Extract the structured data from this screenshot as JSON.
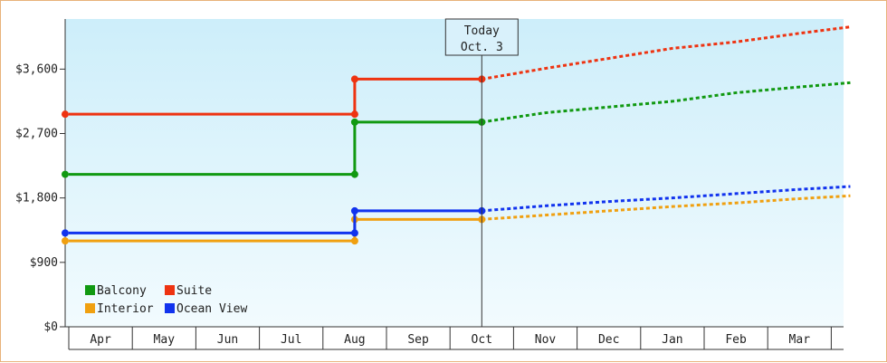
{
  "chart_data": {
    "type": "line",
    "title": "",
    "xlabel": "",
    "ylabel": "",
    "x_categories": [
      "Apr",
      "May",
      "Jun",
      "Jul",
      "Aug",
      "Sep",
      "Oct",
      "Nov",
      "Dec",
      "Jan",
      "Feb",
      "Mar"
    ],
    "y_ticks": [
      "$0",
      "$900",
      "$1,800",
      "$2,700",
      "$3,600"
    ],
    "ylim": [
      0,
      4300
    ],
    "grid": false,
    "legend_placement": "bottom-left",
    "today_marker": {
      "line1": "Today",
      "line2": "Oct. 3",
      "x": 6.0
    },
    "series": [
      {
        "name": "Balcony",
        "color": "#119911",
        "actual": [
          [
            -0.5,
            2130
          ],
          [
            4.0,
            2130
          ],
          [
            4.0,
            2860
          ],
          [
            6.0,
            2860
          ]
        ],
        "projected": [
          [
            6.0,
            2860
          ],
          [
            7.0,
            2990
          ],
          [
            8.0,
            3070
          ],
          [
            9.0,
            3150
          ],
          [
            10.0,
            3270
          ],
          [
            11.0,
            3350
          ],
          [
            11.8,
            3410
          ]
        ]
      },
      {
        "name": "Suite",
        "color": "#ee3311",
        "actual": [
          [
            -0.5,
            2970
          ],
          [
            4.0,
            2970
          ],
          [
            4.0,
            3460
          ],
          [
            6.0,
            3460
          ]
        ],
        "projected": [
          [
            6.0,
            3460
          ],
          [
            7.0,
            3610
          ],
          [
            8.0,
            3750
          ],
          [
            9.0,
            3890
          ],
          [
            10.0,
            3980
          ],
          [
            11.0,
            4100
          ],
          [
            11.8,
            4190
          ]
        ]
      },
      {
        "name": "Interior",
        "color": "#f0a010",
        "actual": [
          [
            -0.5,
            1200
          ],
          [
            4.0,
            1200
          ],
          [
            4.0,
            1500
          ],
          [
            6.0,
            1500
          ]
        ],
        "projected": [
          [
            6.0,
            1500
          ],
          [
            7.0,
            1560
          ],
          [
            8.0,
            1620
          ],
          [
            9.0,
            1680
          ],
          [
            10.0,
            1730
          ],
          [
            11.0,
            1790
          ],
          [
            11.8,
            1830
          ]
        ]
      },
      {
        "name": "Ocean View",
        "color": "#1133ee",
        "actual": [
          [
            -0.5,
            1310
          ],
          [
            4.0,
            1310
          ],
          [
            4.0,
            1620
          ],
          [
            6.0,
            1620
          ]
        ],
        "projected": [
          [
            6.0,
            1620
          ],
          [
            7.0,
            1690
          ],
          [
            8.0,
            1750
          ],
          [
            9.0,
            1800
          ],
          [
            10.0,
            1860
          ],
          [
            11.0,
            1920
          ],
          [
            11.8,
            1960
          ]
        ]
      }
    ],
    "legend": [
      {
        "name": "Balcony",
        "color": "#119911"
      },
      {
        "name": "Suite",
        "color": "#ee3311"
      },
      {
        "name": "Interior",
        "color": "#f0a010"
      },
      {
        "name": "Ocean View",
        "color": "#1133ee"
      }
    ]
  }
}
